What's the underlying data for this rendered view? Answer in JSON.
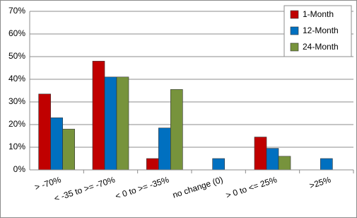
{
  "chart_data": {
    "type": "bar",
    "categories": [
      "> -70%",
      "< -35 to >= -70%",
      "< 0 to >= -35%",
      "no change (0)",
      "> 0 to <= 25%",
      ">25%"
    ],
    "series": [
      {
        "name": "1-Month",
        "color": "#c00000",
        "values": [
          33.5,
          48,
          5,
          0,
          14.5,
          0
        ]
      },
      {
        "name": "12-Month",
        "color": "#0070c0",
        "values": [
          23,
          41,
          18.5,
          5,
          9.5,
          5
        ]
      },
      {
        "name": "24-Month",
        "color": "#77933c",
        "values": [
          18,
          41,
          35.5,
          0,
          6,
          0
        ]
      }
    ],
    "ylim": [
      0,
      70
    ],
    "yticks": [
      {
        "value": 0,
        "label": "0%"
      },
      {
        "value": 10,
        "label": "10%"
      },
      {
        "value": 20,
        "label": "20%"
      },
      {
        "value": 30,
        "label": "30%"
      },
      {
        "value": 40,
        "label": "40%"
      },
      {
        "value": 50,
        "label": "50%"
      },
      {
        "value": 60,
        "label": "60%"
      },
      {
        "value": 70,
        "label": "70%"
      }
    ],
    "grid": true,
    "legend": "top-right"
  }
}
